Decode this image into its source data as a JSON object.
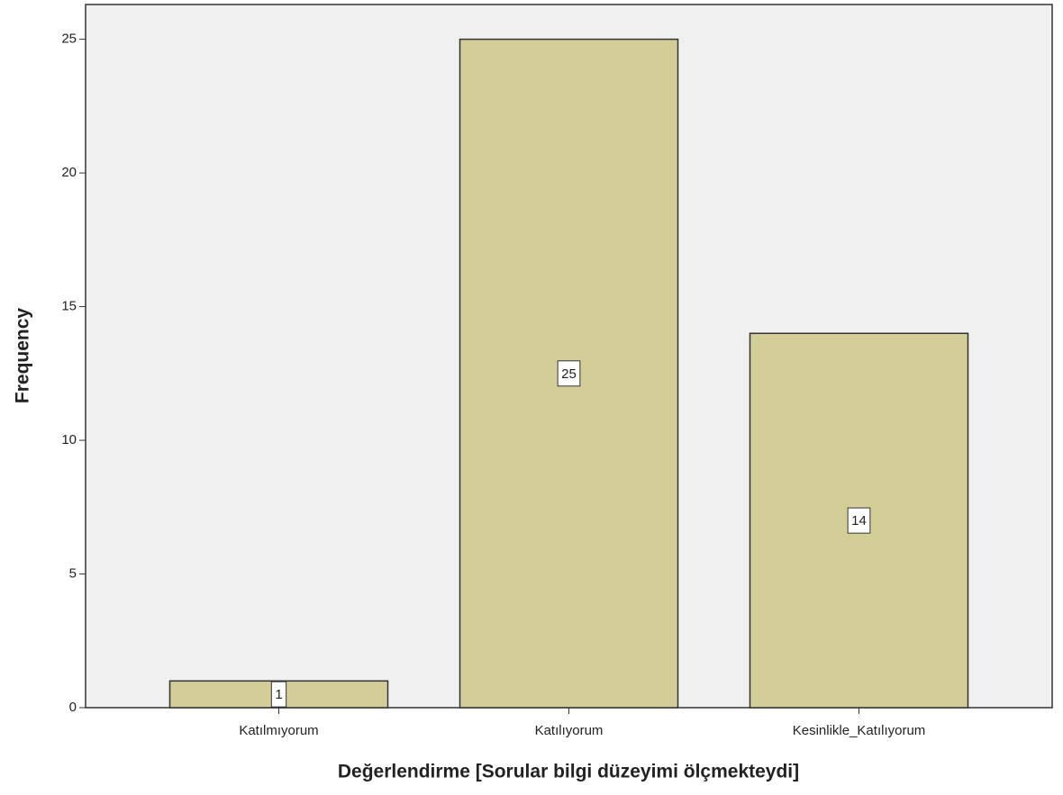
{
  "chart_data": {
    "type": "bar",
    "x_label": "Değerlendirme [Sorular bilgi düzeyimi ölçmekteydi]",
    "y_label": "Frequency",
    "categories": [
      "Katılmıyorum",
      "Katılıyorum",
      "Kesinlikle_Katılıyorum"
    ],
    "values": [
      1,
      25,
      14
    ],
    "color": "#d3ce97",
    "ylim": [
      0,
      26.3
    ],
    "yticks": [
      0,
      5,
      10,
      15,
      20,
      25
    ]
  }
}
